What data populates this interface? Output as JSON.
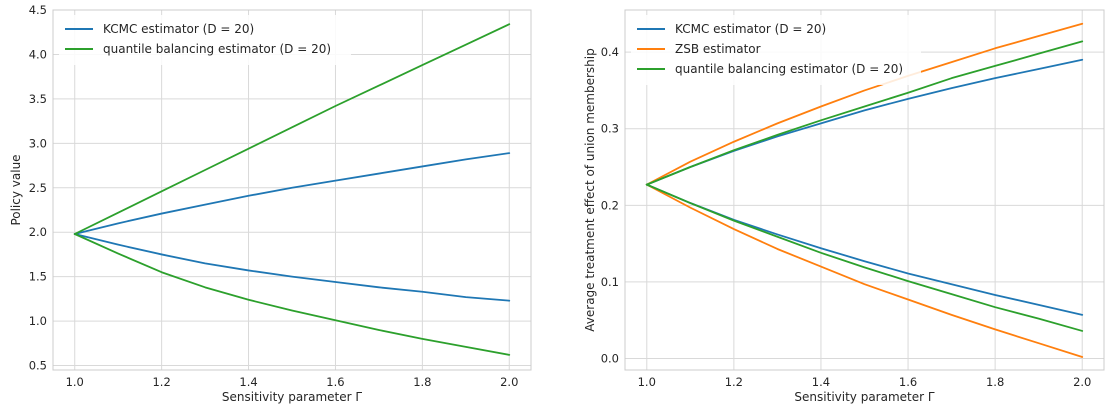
{
  "chart_data": [
    {
      "type": "line",
      "title": "",
      "xlabel": "Sensitivity parameter Γ",
      "ylabel": "Policy value",
      "xlim": [
        0.95,
        2.05
      ],
      "ylim": [
        0.45,
        4.5
      ],
      "x_ticks": [
        "1.0",
        "1.2",
        "1.4",
        "1.6",
        "1.8",
        "2.0"
      ],
      "y_ticks": [
        "0.5",
        "1.0",
        "1.5",
        "2.0",
        "2.5",
        "3.0",
        "3.5",
        "4.0",
        "4.5"
      ],
      "grid": true,
      "legend_position": "top-left",
      "legend": [
        {
          "label": "KCMC estimator (D = 20)",
          "color": "#1f77b4"
        },
        {
          "label": "quantile balancing estimator (D = 20)",
          "color": "#2ca02c"
        }
      ],
      "x": [
        1.0,
        1.1,
        1.2,
        1.3,
        1.4,
        1.5,
        1.6,
        1.7,
        1.8,
        1.9,
        2.0
      ],
      "series": [
        {
          "name": "KCMC estimator (D = 20)",
          "bound": "upper",
          "color": "#1f77b4",
          "values": [
            1.98,
            2.1,
            2.21,
            2.31,
            2.41,
            2.5,
            2.58,
            2.66,
            2.74,
            2.82,
            2.89
          ]
        },
        {
          "name": "KCMC estimator (D = 20)",
          "bound": "lower",
          "color": "#1f77b4",
          "values": [
            1.98,
            1.86,
            1.75,
            1.65,
            1.57,
            1.5,
            1.44,
            1.38,
            1.33,
            1.27,
            1.23
          ]
        },
        {
          "name": "quantile balancing estimator (D = 20)",
          "bound": "upper",
          "color": "#2ca02c",
          "values": [
            1.98,
            2.22,
            2.46,
            2.7,
            2.94,
            3.18,
            3.42,
            3.65,
            3.88,
            4.11,
            4.34
          ]
        },
        {
          "name": "quantile balancing estimator (D = 20)",
          "bound": "lower",
          "color": "#2ca02c",
          "values": [
            1.98,
            1.76,
            1.55,
            1.38,
            1.24,
            1.12,
            1.01,
            0.9,
            0.8,
            0.71,
            0.62
          ]
        }
      ]
    },
    {
      "type": "line",
      "title": "",
      "xlabel": "Sensitivity parameter Γ",
      "ylabel": "Average treatment effect of union membership",
      "xlim": [
        0.95,
        2.05
      ],
      "ylim": [
        -0.015,
        0.455
      ],
      "x_ticks": [
        "1.0",
        "1.2",
        "1.4",
        "1.6",
        "1.8",
        "2.0"
      ],
      "y_ticks": [
        "0.0",
        "0.1",
        "0.2",
        "0.3",
        "0.4"
      ],
      "grid": true,
      "legend_position": "top-left",
      "legend": [
        {
          "label": "KCMC estimator (D = 20)",
          "color": "#1f77b4"
        },
        {
          "label": "ZSB estimator",
          "color": "#ff7f0e"
        },
        {
          "label": "quantile balancing estimator (D = 20)",
          "color": "#2ca02c"
        }
      ],
      "x": [
        1.0,
        1.1,
        1.2,
        1.3,
        1.4,
        1.5,
        1.6,
        1.7,
        1.8,
        1.9,
        2.0
      ],
      "series": [
        {
          "name": "KCMC estimator (D = 20)",
          "bound": "upper",
          "color": "#1f77b4",
          "values": [
            0.227,
            0.25,
            0.271,
            0.29,
            0.307,
            0.324,
            0.339,
            0.353,
            0.366,
            0.378,
            0.39
          ]
        },
        {
          "name": "KCMC estimator (D = 20)",
          "bound": "lower",
          "color": "#1f77b4",
          "values": [
            0.227,
            0.203,
            0.181,
            0.162,
            0.144,
            0.127,
            0.111,
            0.097,
            0.083,
            0.07,
            0.057
          ]
        },
        {
          "name": "ZSB estimator",
          "bound": "upper",
          "color": "#ff7f0e",
          "values": [
            0.227,
            0.257,
            0.283,
            0.307,
            0.329,
            0.35,
            0.369,
            0.387,
            0.405,
            0.421,
            0.437
          ]
        },
        {
          "name": "ZSB estimator",
          "bound": "lower",
          "color": "#ff7f0e",
          "values": [
            0.227,
            0.197,
            0.169,
            0.143,
            0.12,
            0.097,
            0.077,
            0.057,
            0.038,
            0.02,
            0.002
          ]
        },
        {
          "name": "quantile balancing estimator (D = 20)",
          "bound": "upper",
          "color": "#2ca02c",
          "values": [
            0.227,
            0.25,
            0.272,
            0.292,
            0.311,
            0.329,
            0.347,
            0.366,
            0.382,
            0.398,
            0.414
          ]
        },
        {
          "name": "quantile balancing estimator (D = 20)",
          "bound": "lower",
          "color": "#2ca02c",
          "values": [
            0.227,
            0.203,
            0.18,
            0.159,
            0.138,
            0.119,
            0.101,
            0.084,
            0.067,
            0.052,
            0.036
          ]
        }
      ]
    }
  ]
}
